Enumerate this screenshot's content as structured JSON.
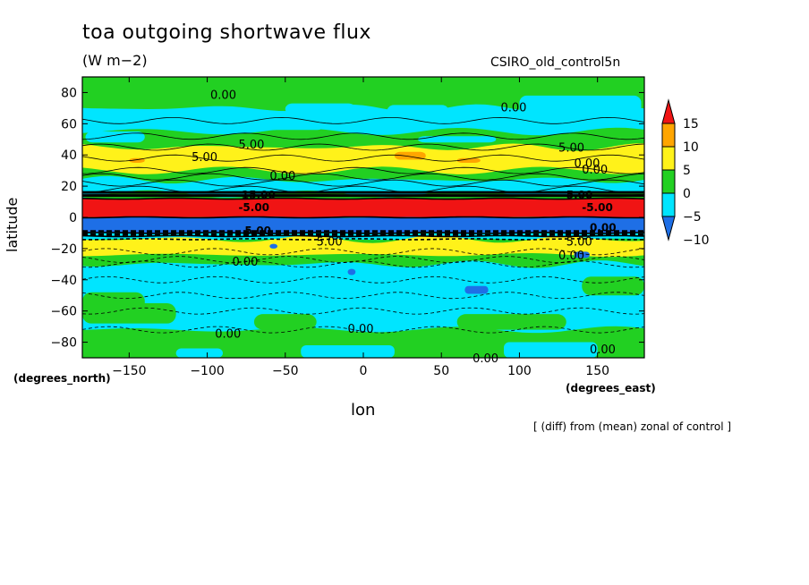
{
  "figure": {
    "title": "toa outgoing shortwave flux",
    "units": "(W m−2)",
    "run_label": "CSIRO_old_control5n",
    "footnote": "[ (diff) from (mean) zonal of control ]",
    "colors": {
      "c_lt_m10": "#1E6FE6",
      "c_m10_m5": "#1E6FE6",
      "c_m5_0": "#00E5FF",
      "c_0_5": "#22D022",
      "c_5_10": "#FFF21A",
      "c_10_15": "#FFA500",
      "c_gt_15": "#F01414"
    }
  },
  "chart_data": {
    "type": "heatmap",
    "title": "toa outgoing shortwave flux",
    "subtitle": "(W m−2)",
    "xlabel": "lon",
    "ylabel": "latitude",
    "x_units": "(degrees_east)",
    "y_units": "(degrees_north)",
    "xlim": [
      -180,
      180
    ],
    "ylim": [
      -90,
      90
    ],
    "xticks": [
      -150,
      -100,
      -50,
      0,
      50,
      100,
      150
    ],
    "yticks": [
      -80,
      -60,
      -40,
      -20,
      0,
      20,
      40,
      60,
      80
    ],
    "colorbar": {
      "levels": [
        -10,
        -5,
        0,
        5,
        10,
        15
      ],
      "labels": [
        "15",
        "10",
        "5",
        "0",
        "−5",
        "−10"
      ]
    },
    "zonal_bands": [
      {
        "lat_min": 70,
        "lat_max": 90,
        "value_range": "0 to 5"
      },
      {
        "lat_min": 55,
        "lat_max": 70,
        "value_range": "-5 to 0 (patchy)"
      },
      {
        "lat_min": 45,
        "lat_max": 55,
        "value_range": "0 to 5"
      },
      {
        "lat_min": 30,
        "lat_max": 45,
        "value_range": "5 to 10"
      },
      {
        "lat_min": 24,
        "lat_max": 30,
        "value_range": "0 to 5"
      },
      {
        "lat_min": 15,
        "lat_max": 24,
        "value_range": "-5 to 0"
      },
      {
        "lat_min": 0,
        "lat_max": 12,
        "value_range": "> 15"
      },
      {
        "lat_min": -10,
        "lat_max": 0,
        "value_range": "< -10"
      },
      {
        "lat_min": -14,
        "lat_max": -10,
        "value_range": "-5 to 0"
      },
      {
        "lat_min": -24,
        "lat_max": -14,
        "value_range": "5 to 10"
      },
      {
        "lat_min": -30,
        "lat_max": -24,
        "value_range": "0 to 5"
      },
      {
        "lat_min": -72,
        "lat_max": -30,
        "value_range": "-5 to 0"
      },
      {
        "lat_min": -90,
        "lat_max": -72,
        "value_range": "0 to 5"
      }
    ],
    "contour_labels": [
      "0.00",
      "5.00",
      "-5.00",
      "-10.00",
      "15.00"
    ],
    "annotation": "[ (diff) from (mean) zonal of control ]"
  }
}
